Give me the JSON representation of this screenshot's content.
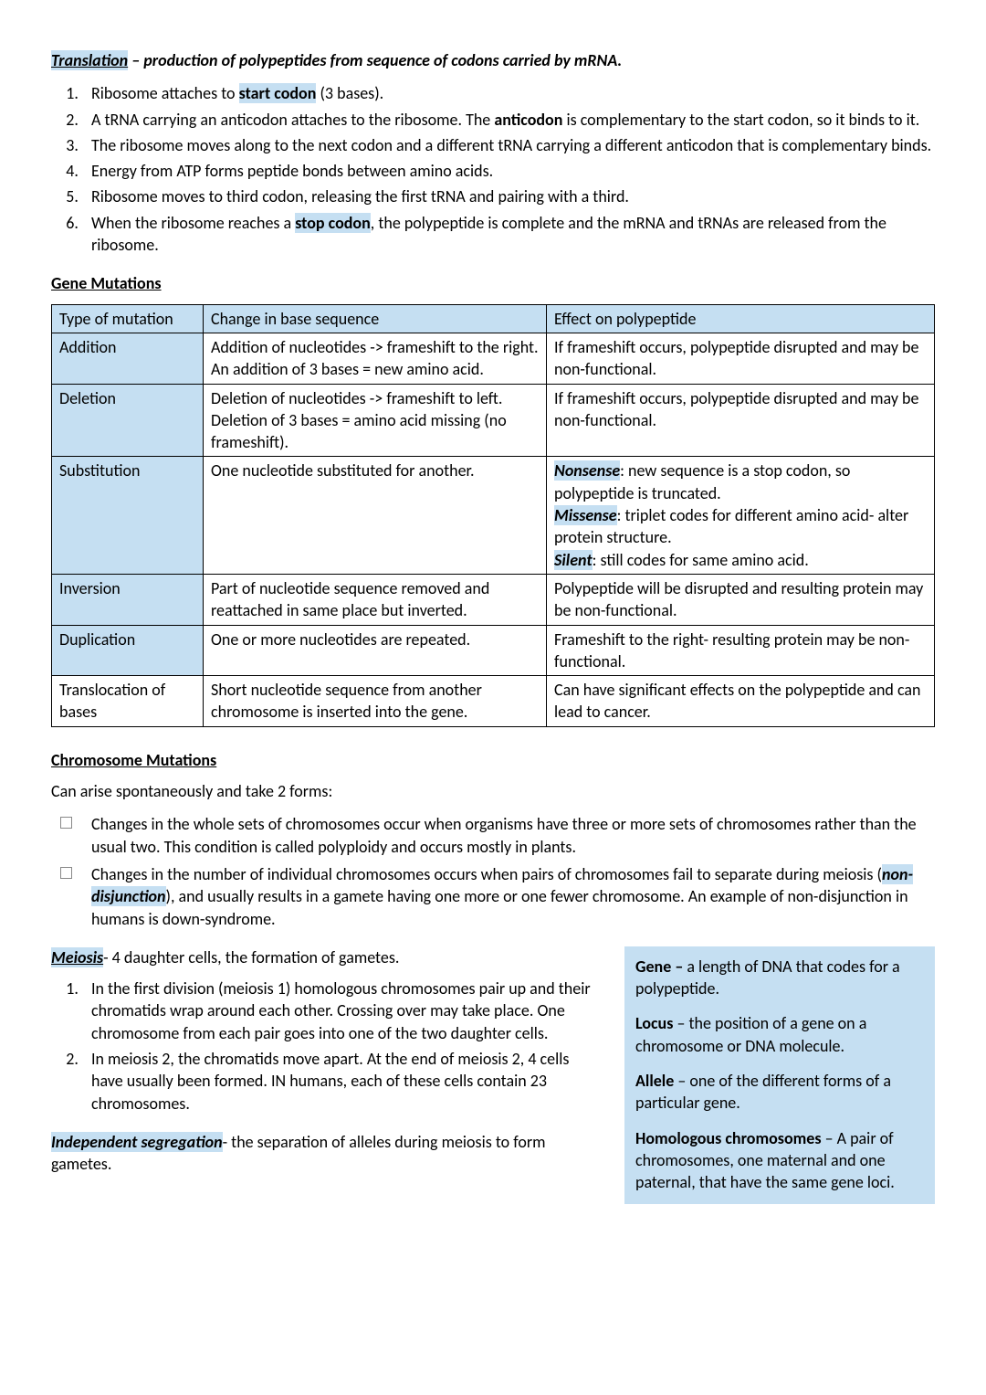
{
  "translation": {
    "term": "Translation",
    "definition": " – production of polypeptides from sequence of codons carried by mRNA.",
    "steps": [
      {
        "pre": "Ribosome attaches to ",
        "bold": "start codon",
        "post": " (3 bases)."
      },
      {
        "pre": "A tRNA carrying an anticodon attaches to the ribosome. The ",
        "bold": "anticodon",
        "post": " is complementary to the start codon, so it binds to it."
      },
      {
        "pre": "The ribosome moves along to the next codon and a different tRNA carrying a different anticodon that is complementary binds.",
        "bold": "",
        "post": ""
      },
      {
        "pre": "Energy from ATP forms peptide bonds between amino acids.",
        "bold": "",
        "post": ""
      },
      {
        "pre": "Ribosome moves to third codon, releasing the first tRNA and pairing with a third.",
        "bold": "",
        "post": ""
      },
      {
        "pre": "When the ribosome reaches a ",
        "bold": "stop codon",
        "post": ", the polypeptide is complete and the mRNA and tRNAs are released from the ribosome."
      }
    ]
  },
  "gene_mutations": {
    "heading": "Gene Mutations",
    "columns": [
      "Type of mutation",
      "Change in base sequence",
      "Effect on polypeptide"
    ],
    "rows": [
      {
        "type": "Addition",
        "change": "Addition of nucleotides -> frameshift to the right. An addition of 3 bases = new amino acid.",
        "effect_plain": "If frameshift occurs, polypeptide disrupted and may be non-functional.",
        "effect_sub": null
      },
      {
        "type": "Deletion",
        "change": "Deletion of nucleotides -> frameshift to left. Deletion of 3 bases = amino acid missing (no frameshift).",
        "effect_plain": "If frameshift occurs, polypeptide disrupted and may be non-functional.",
        "effect_sub": null
      },
      {
        "type": "Substitution",
        "change": "One nucleotide substituted for another.",
        "effect_plain": null,
        "effect_sub": {
          "nonsense_label": "Nonsense",
          "nonsense_text": ": new sequence is a stop codon, so polypeptide is truncated.",
          "missense_label": "Missense",
          "missense_text": ": triplet codes for different amino acid- alter protein structure.",
          "silent_label": "Silent",
          "silent_text": ": still codes for same amino acid."
        }
      },
      {
        "type": "Inversion",
        "change": "Part of nucleotide sequence removed and reattached in same place but inverted.",
        "effect_plain": "Polypeptide will be disrupted and resulting protein may be non-functional.",
        "effect_sub": null
      },
      {
        "type": "Duplication",
        "change": "One or more nucleotides are repeated.",
        "effect_plain": "Frameshift to the right- resulting protein may be non-functional.",
        "effect_sub": null
      },
      {
        "type": "Translocation of bases",
        "change": "Short nucleotide sequence from another chromosome is inserted into the gene.",
        "effect_plain": "Can have significant effects on the polypeptide and can lead to cancer.",
        "effect_sub": null
      }
    ]
  },
  "chromosome_mutations": {
    "heading": "Chromosome Mutations",
    "intro": "Can arise spontaneously and take 2 forms:",
    "items": [
      {
        "pre": "Changes in the whole sets of chromosomes occur when organisms have three or more sets of chromosomes rather than the usual two. This condition is called polyploidy and occurs mostly in plants.",
        "term": "",
        "post": ""
      },
      {
        "pre": "Changes in the number of individual chromosomes occurs when pairs of chromosomes fail to separate during meiosis (",
        "term": "non-disjunction",
        "post": "), and usually results in a gamete having one more or one fewer chromosome. An example of non-disjunction in humans is down-syndrome."
      }
    ]
  },
  "meiosis": {
    "term": "Meiosis",
    "definition": "- 4 daughter cells, the formation of gametes.",
    "steps": [
      "In the first division (meiosis 1) homologous chromosomes pair up and their chromatids wrap around each other. Crossing over may take place. One chromosome from each pair goes into one of the two daughter cells.",
      "In meiosis 2, the chromatids move apart. At the end of meiosis 2, 4 cells have usually been formed. IN humans, each of these cells contain 23 chromosomes."
    ],
    "indep_term": "Independent segregation",
    "indep_def": "- the separation of alleles during meiosis to form gametes."
  },
  "definitions": {
    "gene_label": "Gene –",
    "gene_text": " a length of DNA that codes for a polypeptide.",
    "locus_label": "Locus",
    "locus_text": " – the position of a gene on a chromosome or DNA molecule.",
    "allele_label": "Allele",
    "allele_text": " – one of the different forms of a particular gene.",
    "homolog_label": "Homologous chromosomes",
    "homolog_text": " – A pair of chromosomes, one maternal and one paternal, that have the same gene loci."
  }
}
